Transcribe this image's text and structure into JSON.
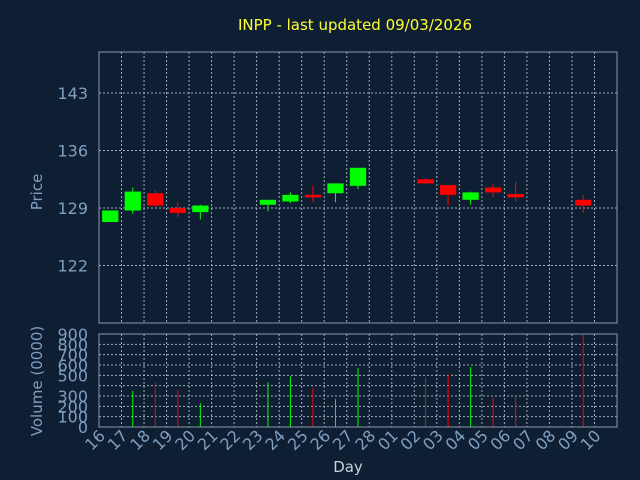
{
  "chart_data": [
    {
      "type": "candlestick",
      "title": "INPP - last updated 09/03/2026",
      "ylabel": "Price",
      "ylim": [
        115,
        148
      ],
      "yticks": [
        122,
        129,
        136,
        143
      ],
      "grid": true,
      "colors": {
        "up": "#00ff00",
        "down": "#ff0000",
        "background": "#0f1f33",
        "text": "#7f9fbf",
        "title": "#ffff33"
      },
      "days": [
        "16",
        "17",
        "18",
        "19",
        "20",
        "21",
        "22",
        "23",
        "24",
        "25",
        "26",
        "27",
        "28",
        "01",
        "02",
        "03",
        "04",
        "05",
        "06",
        "07",
        "08",
        "09",
        "10"
      ],
      "candles": [
        {
          "day": "16",
          "open": 127.3,
          "close": 128.7,
          "high": 128.7,
          "low": 127.3
        },
        {
          "day": "17",
          "open": 128.7,
          "close": 131.0,
          "high": 131.5,
          "low": 128.3
        },
        {
          "day": "18",
          "open": 130.8,
          "close": 129.3,
          "high": 131.2,
          "low": 128.9
        },
        {
          "day": "19",
          "open": 129.0,
          "close": 128.4,
          "high": 129.7,
          "low": 127.9
        },
        {
          "day": "20",
          "open": 128.5,
          "close": 129.3,
          "high": 129.4,
          "low": 127.6
        },
        {
          "day": "23",
          "open": 129.4,
          "close": 130.0,
          "high": 130.0,
          "low": 128.6
        },
        {
          "day": "24",
          "open": 129.8,
          "close": 130.6,
          "high": 130.9,
          "low": 129.6
        },
        {
          "day": "25",
          "open": 130.6,
          "close": 130.3,
          "high": 131.7,
          "low": 129.7
        },
        {
          "day": "26",
          "open": 130.8,
          "close": 132.0,
          "high": 132.0,
          "low": 129.7
        },
        {
          "day": "27",
          "open": 131.7,
          "close": 133.9,
          "high": 133.9,
          "low": 131.3
        },
        {
          "day": "02",
          "open": 132.5,
          "close": 132.0,
          "high": 132.6,
          "low": 131.9
        },
        {
          "day": "03",
          "open": 131.8,
          "close": 130.6,
          "high": 131.8,
          "low": 129.3
        },
        {
          "day": "04",
          "open": 130.0,
          "close": 130.9,
          "high": 131.0,
          "low": 129.4
        },
        {
          "day": "05",
          "open": 131.5,
          "close": 130.9,
          "high": 132.0,
          "low": 130.3
        },
        {
          "day": "06",
          "open": 130.7,
          "close": 130.3,
          "high": 132.2,
          "low": 129.8
        },
        {
          "day": "09",
          "open": 130.0,
          "close": 129.3,
          "high": 130.6,
          "low": 128.4
        }
      ]
    },
    {
      "type": "bar",
      "ylabel": "Volume (0000)",
      "xlabel": "Day",
      "ylim": [
        0,
        900
      ],
      "yticks": [
        0,
        100,
        200,
        300,
        400,
        500,
        600,
        700,
        800,
        900
      ],
      "yticklabels": [
        "0",
        "100",
        "200",
        "300",
        "",
        "500",
        "600",
        "700",
        "800",
        "900"
      ],
      "grid": true,
      "bars": [
        {
          "day": "17",
          "value": 350,
          "color": "#00ff00"
        },
        {
          "day": "18",
          "value": 430,
          "color": "#ff0000"
        },
        {
          "day": "19",
          "value": 360,
          "color": "#ff0000"
        },
        {
          "day": "20",
          "value": 230,
          "color": "#00ff00"
        },
        {
          "day": "23",
          "value": 430,
          "color": "#00ff00"
        },
        {
          "day": "24",
          "value": 490,
          "color": "#00ff00"
        },
        {
          "day": "25",
          "value": 380,
          "color": "#ff0000"
        },
        {
          "day": "26",
          "value": 270,
          "color": "#00ff00"
        },
        {
          "day": "27",
          "value": 570,
          "color": "#00ff00"
        },
        {
          "day": "02",
          "value": 480,
          "color": "#ff0000"
        },
        {
          "day": "03",
          "value": 510,
          "color": "#ff0000"
        },
        {
          "day": "04",
          "value": 580,
          "color": "#00ff00"
        },
        {
          "day": "05",
          "value": 280,
          "color": "#ff0000"
        },
        {
          "day": "06",
          "value": 290,
          "color": "#ff0000"
        },
        {
          "day": "09",
          "value": 890,
          "color": "#ff0000"
        }
      ]
    }
  ]
}
